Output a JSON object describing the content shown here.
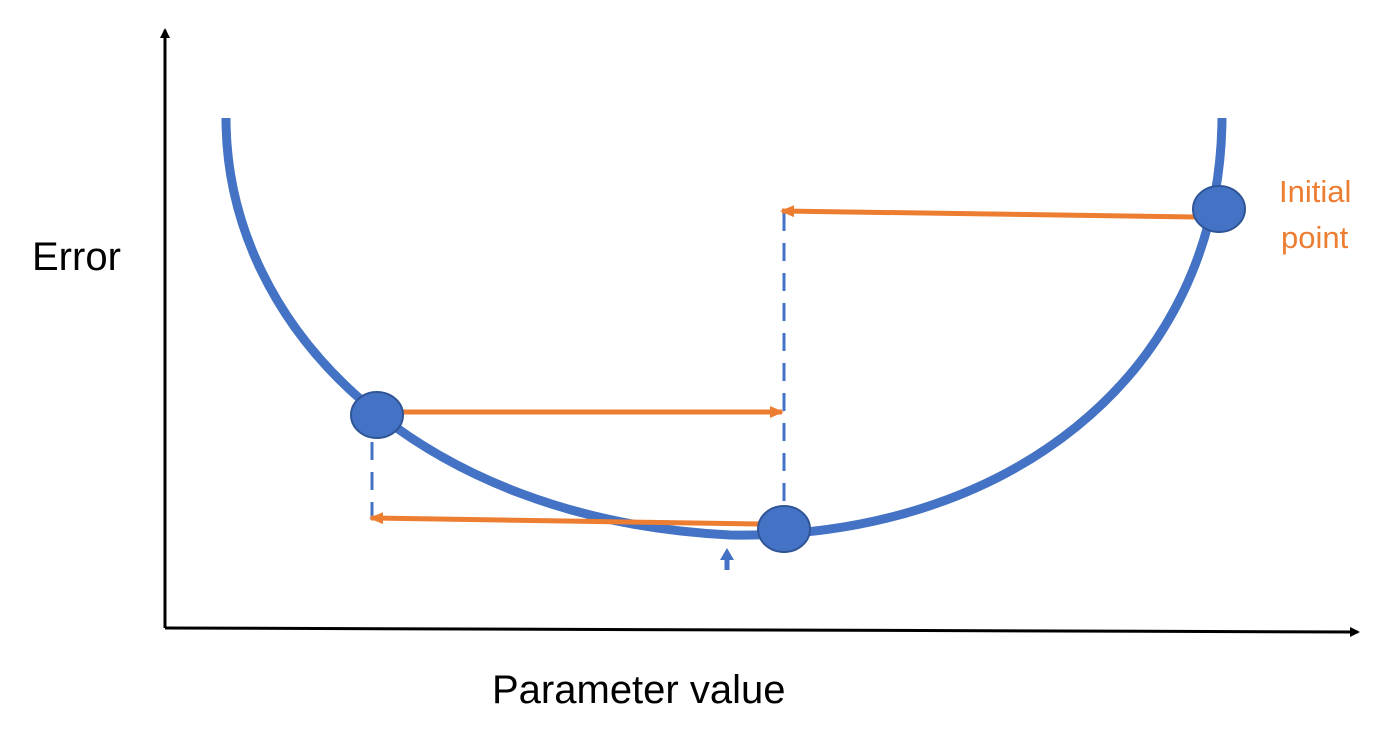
{
  "labels": {
    "y_axis": "Error",
    "x_axis": "Parameter value",
    "annotation_line1": "Initial",
    "annotation_line2": "point"
  },
  "colors": {
    "curve": "#4472c4",
    "arrow": "#ed7d31",
    "axis": "#000000",
    "text": "#000000",
    "annotation": "#ed7d31"
  }
}
